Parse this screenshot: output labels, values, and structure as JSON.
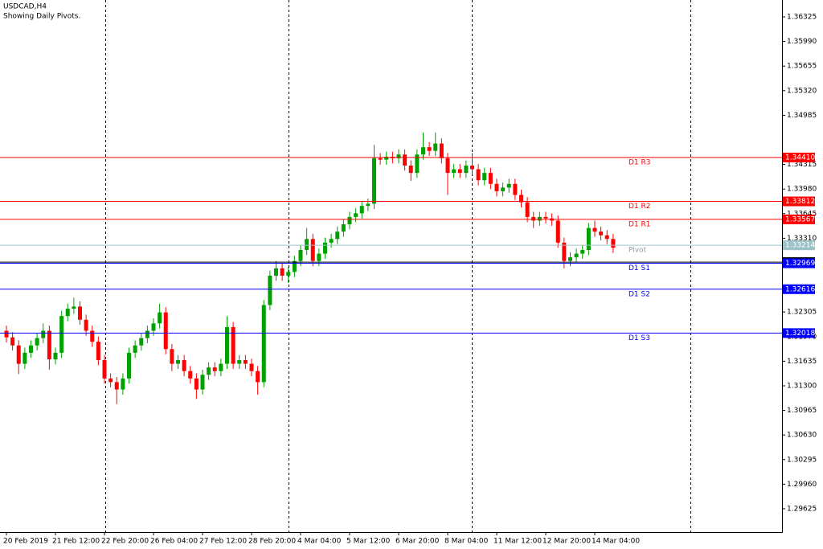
{
  "chart_data": {
    "type": "candlestick",
    "title": "USDCAD,H4",
    "subtitle": "Showing Daily Pivots.",
    "categories": [
      "20 Feb 2019",
      null,
      null,
      null,
      null,
      null,
      null,
      null,
      "21 Feb 12:00",
      null,
      null,
      null,
      null,
      null,
      null,
      null,
      "22 Feb 20:00",
      null,
      null,
      null,
      null,
      null,
      null,
      null,
      "26 Feb 04:00",
      null,
      null,
      null,
      null,
      null,
      null,
      null,
      "27 Feb 12:00",
      null,
      null,
      null,
      null,
      null,
      null,
      null,
      "28 Feb 20:00",
      null,
      null,
      null,
      null,
      null,
      null,
      null,
      "4 Mar 04:00",
      null,
      null,
      null,
      null,
      null,
      null,
      null,
      "5 Mar 12:00",
      null,
      null,
      null,
      null,
      null,
      null,
      null,
      "6 Mar 20:00",
      null,
      null,
      null,
      null,
      null,
      null,
      null,
      "8 Mar 04:00",
      null,
      null,
      null,
      null,
      null,
      null,
      null,
      "11 Mar 12:00",
      null,
      null,
      null,
      null,
      null,
      null,
      null,
      "12 Mar 20:00",
      null,
      null,
      null,
      null,
      null,
      null,
      null,
      "14 Mar 04:00",
      null,
      null,
      null
    ],
    "open": [
      1.3205,
      1.3196,
      1.3185,
      1.316,
      1.3175,
      1.3185,
      1.3195,
      1.3205,
      1.3166,
      1.3175,
      1.3225,
      1.3235,
      1.3238,
      1.322,
      1.3205,
      1.319,
      1.3165,
      1.314,
      1.3135,
      1.3125,
      1.314,
      1.3175,
      1.3185,
      1.3195,
      1.3205,
      1.3215,
      1.323,
      1.318,
      1.316,
      1.3165,
      1.315,
      1.314,
      1.3125,
      1.3145,
      1.3155,
      1.315,
      1.316,
      1.321,
      1.316,
      1.3165,
      1.316,
      1.315,
      1.3135,
      1.324,
      1.328,
      1.329,
      1.328,
      1.3285,
      1.33,
      1.3315,
      1.333,
      1.33,
      1.331,
      1.3325,
      1.333,
      1.334,
      1.335,
      1.336,
      1.3365,
      1.3375,
      1.3378,
      1.344,
      1.3438,
      1.3442,
      1.344,
      1.3445,
      1.343,
      1.342,
      1.3445,
      1.3455,
      1.345,
      1.346,
      1.344,
      1.342,
      1.3425,
      1.342,
      1.343,
      1.3425,
      1.341,
      1.342,
      1.3405,
      1.3395,
      1.34,
      1.3405,
      1.339,
      1.338,
      1.336,
      1.3355,
      1.336,
      1.3358,
      1.3355,
      1.3325,
      1.33,
      1.3305,
      1.331,
      1.3315,
      1.3345,
      1.334,
      1.3335,
      1.333
    ],
    "high": [
      1.3212,
      1.3203,
      1.3192,
      1.3182,
      1.3192,
      1.3202,
      1.3215,
      1.3212,
      1.3182,
      1.3232,
      1.3242,
      1.325,
      1.3245,
      1.3227,
      1.3212,
      1.3197,
      1.3172,
      1.3147,
      1.3142,
      1.3147,
      1.3182,
      1.3192,
      1.3202,
      1.3212,
      1.3222,
      1.3242,
      1.3237,
      1.3187,
      1.3172,
      1.3172,
      1.3157,
      1.3147,
      1.3152,
      1.3162,
      1.3162,
      1.3167,
      1.3225,
      1.3217,
      1.3172,
      1.3172,
      1.3167,
      1.3157,
      1.3247,
      1.3287,
      1.33,
      1.3297,
      1.3292,
      1.3307,
      1.3322,
      1.3345,
      1.3337,
      1.3317,
      1.3332,
      1.3337,
      1.3347,
      1.3357,
      1.3367,
      1.3372,
      1.3382,
      1.3385,
      1.3458,
      1.3447,
      1.3449,
      1.3449,
      1.3452,
      1.3452,
      1.3437,
      1.3452,
      1.3475,
      1.3462,
      1.3475,
      1.3467,
      1.3447,
      1.3432,
      1.3432,
      1.3437,
      1.3447,
      1.3432,
      1.3427,
      1.3427,
      1.3412,
      1.3407,
      1.3412,
      1.3412,
      1.3397,
      1.3387,
      1.3367,
      1.3367,
      1.3367,
      1.3365,
      1.3362,
      1.3332,
      1.3312,
      1.3317,
      1.3322,
      1.3352,
      1.3355,
      1.3347,
      1.3342,
      1.3337
    ],
    "low": [
      1.3189,
      1.3178,
      1.3146,
      1.3153,
      1.3168,
      1.3178,
      1.3188,
      1.3152,
      1.3159,
      1.3168,
      1.3218,
      1.3228,
      1.3213,
      1.3198,
      1.3183,
      1.3158,
      1.3133,
      1.3128,
      1.3105,
      1.3118,
      1.3133,
      1.3168,
      1.3178,
      1.3188,
      1.3198,
      1.3208,
      1.3173,
      1.315,
      1.3153,
      1.3143,
      1.3133,
      1.3112,
      1.3118,
      1.3138,
      1.3143,
      1.3143,
      1.3153,
      1.3153,
      1.3153,
      1.3153,
      1.3143,
      1.3118,
      1.3128,
      1.3233,
      1.3273,
      1.3273,
      1.327,
      1.3278,
      1.3293,
      1.3308,
      1.3293,
      1.3293,
      1.3303,
      1.3318,
      1.3323,
      1.3333,
      1.3343,
      1.3353,
      1.3358,
      1.3368,
      1.3371,
      1.3431,
      1.3431,
      1.3433,
      1.3433,
      1.3423,
      1.3409,
      1.3413,
      1.3438,
      1.3443,
      1.3443,
      1.3433,
      1.339,
      1.3413,
      1.3413,
      1.3413,
      1.3418,
      1.3403,
      1.3403,
      1.3398,
      1.3388,
      1.3388,
      1.3393,
      1.3383,
      1.3373,
      1.3353,
      1.3345,
      1.3348,
      1.3351,
      1.3348,
      1.3318,
      1.329,
      1.3293,
      1.3298,
      1.3303,
      1.3308,
      1.3333,
      1.3328,
      1.3323,
      1.3311
    ],
    "close": [
      1.3196,
      1.3185,
      1.316,
      1.3175,
      1.3185,
      1.3195,
      1.3205,
      1.3166,
      1.3175,
      1.3225,
      1.3235,
      1.3238,
      1.322,
      1.3205,
      1.319,
      1.3165,
      1.314,
      1.3135,
      1.3125,
      1.314,
      1.3175,
      1.3185,
      1.3195,
      1.3205,
      1.3215,
      1.323,
      1.318,
      1.316,
      1.3165,
      1.315,
      1.314,
      1.3125,
      1.3145,
      1.3155,
      1.315,
      1.316,
      1.321,
      1.316,
      1.3165,
      1.316,
      1.315,
      1.3135,
      1.324,
      1.328,
      1.329,
      1.328,
      1.3285,
      1.33,
      1.3315,
      1.333,
      1.33,
      1.331,
      1.3325,
      1.333,
      1.334,
      1.335,
      1.336,
      1.3365,
      1.3375,
      1.3378,
      1.344,
      1.3438,
      1.3442,
      1.344,
      1.3445,
      1.343,
      1.342,
      1.3445,
      1.3455,
      1.345,
      1.346,
      1.344,
      1.342,
      1.3425,
      1.342,
      1.343,
      1.3425,
      1.341,
      1.342,
      1.3405,
      1.3395,
      1.34,
      1.3405,
      1.339,
      1.338,
      1.336,
      1.3355,
      1.336,
      1.3358,
      1.3355,
      1.3325,
      1.33,
      1.3305,
      1.331,
      1.3315,
      1.3345,
      1.334,
      1.3335,
      1.333,
      1.3318
    ],
    "up_color": "#00a000",
    "down_color": "#ff0000",
    "ylim": [
      1.29307,
      1.36555
    ],
    "yticks": [
      1.36325,
      {
        "value": 1.3599,
        "label": "1.35990"
      },
      1.35655,
      {
        "value": 1.3532,
        "label": "1.35320"
      },
      1.34985,
      1.34315,
      {
        "value": 1.3398,
        "label": "1.33980"
      },
      1.33645,
      {
        "value": 1.3331,
        "label": "1.33310"
      },
      1.32305,
      {
        "value": 1.3197,
        "label": "1.31970"
      },
      1.31635,
      {
        "value": 1.313,
        "label": "1.31300"
      },
      1.30965,
      {
        "value": 1.3063,
        "label": "1.30630"
      },
      1.30295,
      {
        "value": 1.2996,
        "label": "1.29960"
      },
      1.29625
    ],
    "bid": 1.32985,
    "pivots": [
      {
        "name": "D1 R3",
        "value": 1.3441,
        "label": "1.34410",
        "color": "#ff0000"
      },
      {
        "name": "D1 R2",
        "value": 1.33812,
        "label": "1.33812",
        "color": "#ff0000"
      },
      {
        "name": "D1 R1",
        "value": 1.33567,
        "label": "1.33567",
        "color": "#ff0000"
      },
      {
        "name": "Pivot",
        "value": 1.33214,
        "label": "1.33214",
        "color": "#9cc3c8"
      },
      {
        "name": "D1 S1",
        "value": 1.32969,
        "label": "1.32969",
        "color": "#0000ff"
      },
      {
        "name": "D1 S2",
        "value": 1.32616,
        "label": "1.32616",
        "color": "#0000ff"
      },
      {
        "name": "D1 S3",
        "value": 1.32018,
        "label": "1.32018",
        "color": "#0000ff"
      }
    ]
  }
}
